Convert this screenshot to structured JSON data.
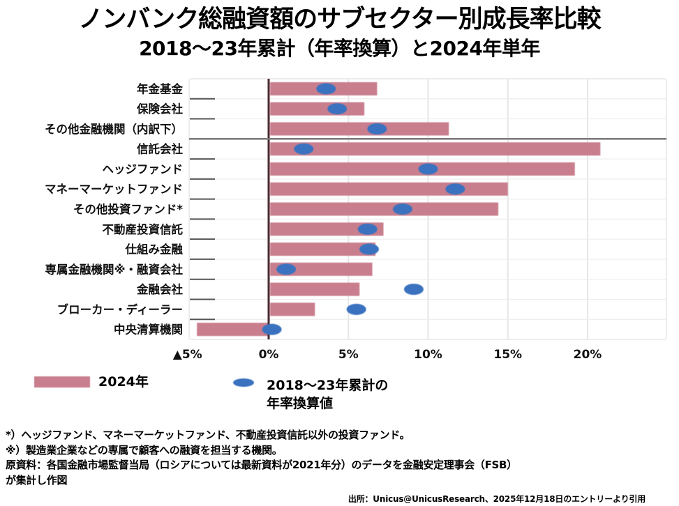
{
  "header": {
    "title": "ノンバンク総融資額のサブセクター別成長率比較",
    "subtitle": "2018～23年累計（年率換算）と2024年単年"
  },
  "colors": {
    "bar": "#c97e8e",
    "dot": "#3a72bf",
    "zero_line": "#4a2a30",
    "separator": "#7a7a7a",
    "grid": "#e6e6e6"
  },
  "chart_data": {
    "type": "bar",
    "orientation": "horizontal",
    "title": "ノンバンク総融資額のサブセクター別成長率比較",
    "subtitle": "2018～23年累計（年率換算）と2024年単年",
    "xlabel": "",
    "ylabel": "",
    "xlim": [
      -5,
      25
    ],
    "x_ticks": [
      -5,
      0,
      5,
      10,
      15,
      20
    ],
    "x_tick_labels": [
      "▲5%",
      "0%",
      "5%",
      "10%",
      "15%",
      "20%"
    ],
    "grid": true,
    "separator_after_index": 2,
    "categories": [
      "年金基金",
      "保険会社",
      "その他金融機関（内訳下）",
      "信託会社",
      "ヘッジファンド",
      "マネーマーケットファンド",
      "その他投資ファンド*",
      "不動産投資信託",
      "仕組み金融",
      "専属金融機関※・融資会社",
      "金融会社",
      "ブローカー・ディーラー",
      "中央清算機関"
    ],
    "series": [
      {
        "name": "2024年",
        "type": "bar",
        "values": [
          6.8,
          6.0,
          11.3,
          20.8,
          19.2,
          15.0,
          14.4,
          7.2,
          6.7,
          6.5,
          5.7,
          2.9,
          -4.5
        ]
      },
      {
        "name": "2018～23年累計の年率換算値",
        "type": "scatter",
        "values": [
          3.6,
          4.3,
          6.8,
          2.2,
          10.0,
          11.7,
          8.4,
          6.2,
          6.3,
          1.1,
          9.1,
          5.5,
          0.2
        ]
      }
    ],
    "legend": {
      "placement": "bottom",
      "entries": [
        "2024年",
        "2018～23年累計の年率換算値"
      ]
    }
  },
  "legend": {
    "bar_label": "2024年",
    "dot_label_line1": "2018～23年累計の",
    "dot_label_line2": "年率換算値"
  },
  "notes": {
    "note1": "*）ヘッジファンド、マネーマーケットファンド、不動産投資信託以外の投資ファンド。",
    "note2": "※）製造業企業などの専属で顧客への融資を担当する機関。",
    "note3_line1": "原資料：各国金融市場監督当局（ロシアについては最新資料が2021年分）のデータを金融安定理事会（FSB）",
    "note3_line2": "が集計し作図",
    "source": "出所：Unicus@UnicusResearch、2025年12月18日のエントリーより引用"
  }
}
